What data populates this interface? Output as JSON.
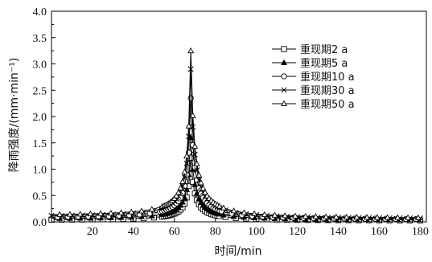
{
  "chart_data": {
    "type": "line",
    "xlabel": "时间/min",
    "ylabel": "降雨强度/(mm·min⁻¹)",
    "xlim": [
      0,
      183
    ],
    "ylim": [
      0,
      4.0
    ],
    "xticks": [
      20,
      40,
      60,
      80,
      100,
      120,
      140,
      160,
      180
    ],
    "yticks": [
      0.0,
      0.5,
      1.0,
      1.5,
      2.0,
      2.5,
      3.0,
      3.5,
      4.0
    ],
    "ytick_labels": [
      "0.0",
      "0.5",
      "1.0",
      "1.5",
      "2.0",
      "2.5",
      "3.0",
      "3.5",
      "4.0"
    ],
    "legend_position": "top-right",
    "peak_time": 68,
    "series": [
      {
        "name": "重现期2 a",
        "marker": "square",
        "peak": 1.22,
        "base_left": 0.03,
        "base_right": 0.02
      },
      {
        "name": "重现期5 a",
        "marker": "filled-triangle",
        "peak": 1.6,
        "base_left": 0.05,
        "base_right": 0.03
      },
      {
        "name": "重现期10 a",
        "marker": "circle",
        "peak": 2.35,
        "base_left": 0.07,
        "base_right": 0.04
      },
      {
        "name": "重现期30 a",
        "marker": "x",
        "peak": 2.9,
        "base_left": 0.09,
        "base_right": 0.05
      },
      {
        "name": "重现期50 a",
        "marker": "triangle",
        "peak": 3.25,
        "base_left": 0.11,
        "base_right": 0.06
      }
    ]
  }
}
